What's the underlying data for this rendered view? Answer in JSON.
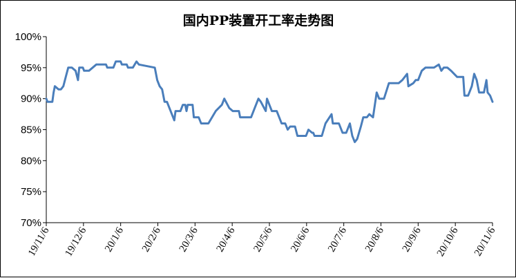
{
  "chart_data": {
    "type": "line",
    "title": "国内PP装置开工率走势图",
    "xlabel": "",
    "ylabel": "",
    "ylim": [
      70,
      100
    ],
    "y_ticks": [
      "70%",
      "75%",
      "80%",
      "85%",
      "90%",
      "95%",
      "100%"
    ],
    "x_ticks": [
      "19/11/6",
      "19/12/6",
      "20/1/6",
      "20/2/6",
      "20/3/6",
      "20/4/6",
      "20/5/6",
      "20/6/6",
      "20/7/6",
      "20/8/6",
      "20/9/6",
      "20/10/6",
      "20/11/6"
    ],
    "x_range": [
      "2019-11-06",
      "2020-11-06"
    ],
    "grid": false,
    "series": [
      {
        "color": "#4A7EBB",
        "points": [
          [
            "2019-11-06",
            90.0
          ],
          [
            "2019-11-07",
            89.5
          ],
          [
            "2019-11-11",
            89.5
          ],
          [
            "2019-11-12",
            91.0
          ],
          [
            "2019-11-13",
            92.0
          ],
          [
            "2019-11-16",
            91.5
          ],
          [
            "2019-11-18",
            91.5
          ],
          [
            "2019-11-20",
            92.0
          ],
          [
            "2019-11-22",
            93.5
          ],
          [
            "2019-11-24",
            95.0
          ],
          [
            "2019-11-27",
            95.0
          ],
          [
            "2019-11-30",
            94.5
          ],
          [
            "2019-12-02",
            93.0
          ],
          [
            "2019-12-03",
            95.0
          ],
          [
            "2019-12-06",
            95.0
          ],
          [
            "2019-12-07",
            94.5
          ],
          [
            "2019-12-11",
            94.5
          ],
          [
            "2019-12-14",
            95.0
          ],
          [
            "2019-12-17",
            95.5
          ],
          [
            "2019-12-25",
            95.5
          ],
          [
            "2019-12-26",
            95.0
          ],
          [
            "2019-12-31",
            95.0
          ],
          [
            "2020-01-02",
            96.0
          ],
          [
            "2020-01-06",
            96.0
          ],
          [
            "2020-01-07",
            95.5
          ],
          [
            "2020-01-11",
            95.5
          ],
          [
            "2020-01-12",
            95.0
          ],
          [
            "2020-01-16",
            95.0
          ],
          [
            "2020-01-19",
            96.0
          ],
          [
            "2020-01-21",
            95.5
          ],
          [
            "2020-02-03",
            95.0
          ],
          [
            "2020-02-05",
            93.0
          ],
          [
            "2020-02-07",
            92.0
          ],
          [
            "2020-02-09",
            91.5
          ],
          [
            "2020-02-11",
            89.5
          ],
          [
            "2020-02-13",
            89.5
          ],
          [
            "2020-02-16",
            88.0
          ],
          [
            "2020-02-19",
            86.5
          ],
          [
            "2020-02-20",
            88.0
          ],
          [
            "2020-02-24",
            88.0
          ],
          [
            "2020-02-26",
            89.0
          ],
          [
            "2020-02-28",
            89.0
          ],
          [
            "2020-02-29",
            88.0
          ],
          [
            "2020-03-01",
            89.0
          ],
          [
            "2020-03-05",
            89.0
          ],
          [
            "2020-03-06",
            87.0
          ],
          [
            "2020-03-10",
            87.0
          ],
          [
            "2020-03-12",
            86.0
          ],
          [
            "2020-03-18",
            86.0
          ],
          [
            "2020-03-24",
            88.0
          ],
          [
            "2020-03-29",
            89.0
          ],
          [
            "2020-03-31",
            90.0
          ],
          [
            "2020-04-04",
            88.5
          ],
          [
            "2020-04-07",
            88.0
          ],
          [
            "2020-04-12",
            88.0
          ],
          [
            "2020-04-13",
            87.0
          ],
          [
            "2020-04-22",
            87.0
          ],
          [
            "2020-04-25",
            88.5
          ],
          [
            "2020-04-28",
            90.0
          ],
          [
            "2020-04-30",
            89.5
          ],
          [
            "2020-05-04",
            88.0
          ],
          [
            "2020-05-05",
            90.0
          ],
          [
            "2020-05-09",
            88.0
          ],
          [
            "2020-05-13",
            88.0
          ],
          [
            "2020-05-17",
            86.0
          ],
          [
            "2020-05-20",
            86.0
          ],
          [
            "2020-05-22",
            85.0
          ],
          [
            "2020-05-24",
            85.5
          ],
          [
            "2020-05-28",
            85.5
          ],
          [
            "2020-05-30",
            84.0
          ],
          [
            "2020-06-06",
            84.0
          ],
          [
            "2020-06-08",
            85.0
          ],
          [
            "2020-06-11",
            84.5
          ],
          [
            "2020-06-12",
            84.5
          ],
          [
            "2020-06-13",
            84.0
          ],
          [
            "2020-06-19",
            84.0
          ],
          [
            "2020-06-22",
            86.0
          ],
          [
            "2020-06-27",
            87.5
          ],
          [
            "2020-06-28",
            86.0
          ],
          [
            "2020-07-03",
            86.0
          ],
          [
            "2020-07-06",
            84.5
          ],
          [
            "2020-07-09",
            84.5
          ],
          [
            "2020-07-12",
            86.0
          ],
          [
            "2020-07-14",
            84.0
          ],
          [
            "2020-07-16",
            83.0
          ],
          [
            "2020-07-18",
            83.5
          ],
          [
            "2020-07-21",
            85.5
          ],
          [
            "2020-07-23",
            87.0
          ],
          [
            "2020-07-26",
            87.0
          ],
          [
            "2020-07-28",
            87.5
          ],
          [
            "2020-07-31",
            87.0
          ],
          [
            "2020-08-03",
            91.0
          ],
          [
            "2020-08-05",
            90.0
          ],
          [
            "2020-08-09",
            90.0
          ],
          [
            "2020-08-13",
            92.5
          ],
          [
            "2020-08-21",
            92.5
          ],
          [
            "2020-08-24",
            93.0
          ],
          [
            "2020-08-26",
            93.5
          ],
          [
            "2020-08-28",
            94.0
          ],
          [
            "2020-08-29",
            92.0
          ],
          [
            "2020-09-02",
            92.5
          ],
          [
            "2020-09-04",
            93.0
          ],
          [
            "2020-09-06",
            93.0
          ],
          [
            "2020-09-09",
            94.5
          ],
          [
            "2020-09-12",
            95.0
          ],
          [
            "2020-09-19",
            95.0
          ],
          [
            "2020-09-23",
            95.5
          ],
          [
            "2020-09-25",
            94.5
          ],
          [
            "2020-09-27",
            95.0
          ],
          [
            "2020-09-30",
            95.0
          ],
          [
            "2020-10-03",
            94.5
          ],
          [
            "2020-10-08",
            93.5
          ],
          [
            "2020-10-13",
            93.5
          ],
          [
            "2020-10-14",
            90.5
          ],
          [
            "2020-10-17",
            90.5
          ],
          [
            "2020-10-20",
            92.0
          ],
          [
            "2020-10-22",
            94.0
          ],
          [
            "2020-10-24",
            93.0
          ],
          [
            "2020-10-26",
            91.0
          ],
          [
            "2020-10-30",
            91.0
          ],
          [
            "2020-11-01",
            93.0
          ],
          [
            "2020-11-02",
            91.0
          ],
          [
            "2020-11-04",
            90.5
          ],
          [
            "2020-11-06",
            89.5
          ]
        ]
      }
    ]
  }
}
